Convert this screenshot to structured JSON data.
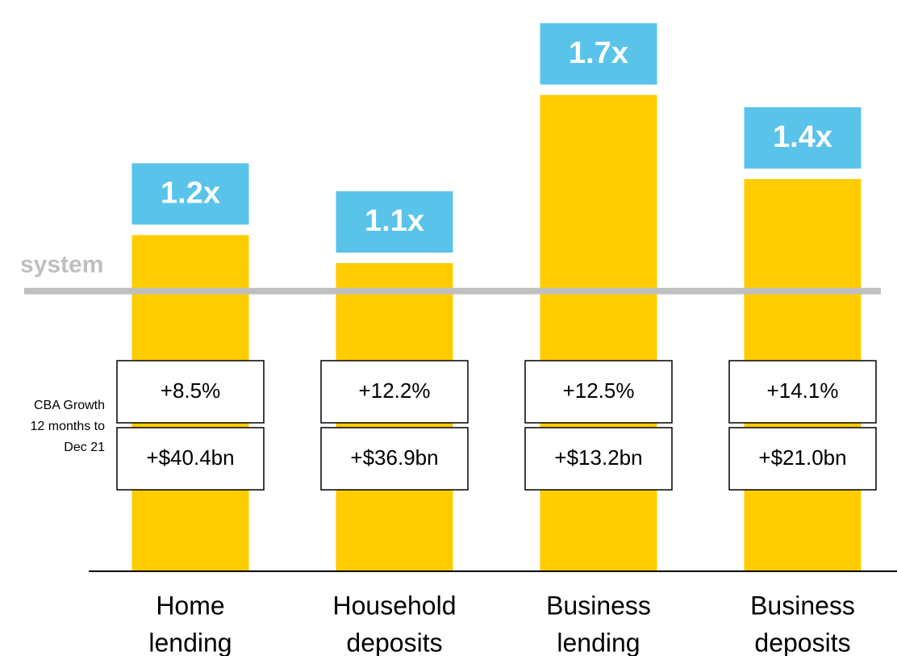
{
  "chart_data": {
    "type": "bar",
    "categories": [
      [
        "Home",
        "lending"
      ],
      [
        "Household",
        "deposits"
      ],
      [
        "Business",
        "lending"
      ],
      [
        "Business",
        "deposits"
      ]
    ],
    "values": [
      1.2,
      1.1,
      1.7,
      1.4
    ],
    "value_labels": [
      "1.2x",
      "1.1x",
      "1.7x",
      "1.4x"
    ],
    "color": "#ffcc00",
    "label_color": "#59c3ea",
    "ylim": [
      0,
      1.8
    ],
    "system_line": {
      "label": "system",
      "value": 1,
      "color": "#bfbfbf"
    },
    "growth_table": {
      "row_label": [
        "CBA Growth",
        "12 months to",
        "Dec 21"
      ],
      "rows": [
        [
          "+8.5%",
          "+12.2%",
          "+12.5%",
          "+14.1%"
        ],
        [
          "+$40.4bn",
          "+$36.9bn",
          "+$13.2bn",
          "+$21.0bn"
        ]
      ]
    }
  }
}
